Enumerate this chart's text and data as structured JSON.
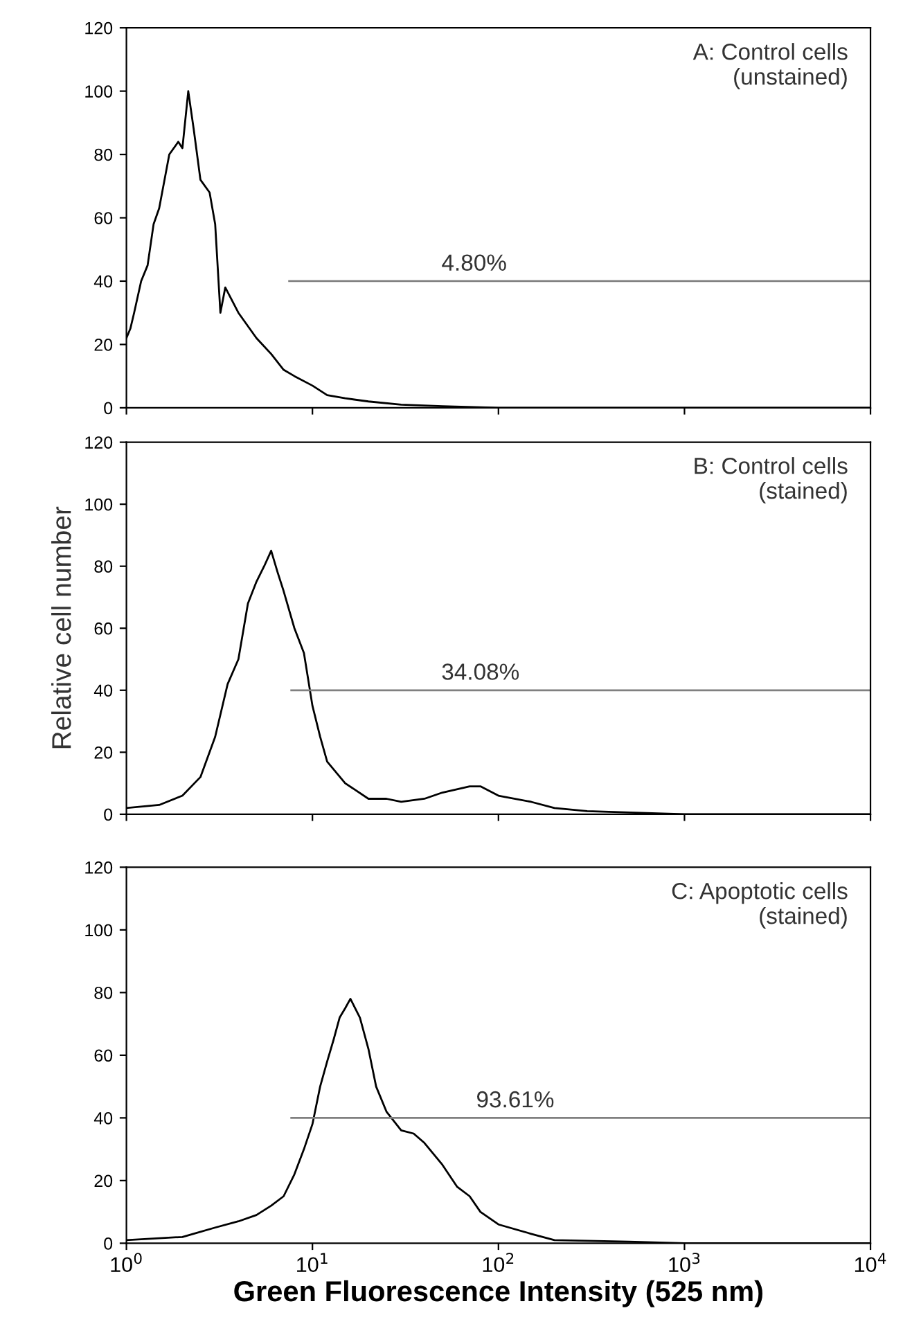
{
  "chart_data": [
    {
      "type": "line",
      "log": "x",
      "xlim": [
        1,
        10000
      ],
      "ylim": [
        0,
        120
      ],
      "yticks": [
        0,
        20,
        40,
        60,
        80,
        100,
        120
      ],
      "xticks": [
        {
          "value": 1,
          "label": null
        },
        {
          "value": 10,
          "label": null
        },
        {
          "value": 100,
          "label": null
        },
        {
          "value": 1000,
          "label": null
        },
        {
          "value": 10000,
          "label": null
        }
      ],
      "tick_labels": "y",
      "grid": false,
      "marker": "none",
      "line_style": "solid",
      "annotations": [
        "A: Control cells\n(unstained)",
        {
          "text": "4.80%",
          "x": 74,
          "y": 40
        }
      ],
      "series": [
        {
          "color": "#000000",
          "x": [
            1,
            1.05,
            1.1,
            1.2,
            1.3,
            1.4,
            1.5,
            1.7,
            1.9,
            2.0,
            2.15,
            2.3,
            2.5,
            2.8,
            3.0,
            3.2,
            3.4,
            4,
            5,
            6,
            7,
            8,
            10,
            12,
            15,
            20,
            30,
            50,
            100,
            1000,
            10000
          ],
          "values": [
            22,
            25,
            30,
            40,
            45,
            58,
            63,
            80,
            84,
            82,
            100,
            88,
            72,
            68,
            58,
            30,
            38,
            30,
            22,
            17,
            12,
            10,
            7,
            4,
            3,
            2,
            1,
            0.5,
            0,
            0,
            0
          ]
        },
        {
          "color": "#808080",
          "x": [
            7.5,
            10000
          ],
          "values": [
            40,
            40
          ]
        }
      ]
    },
    {
      "type": "line",
      "log": "x",
      "xlim": [
        1,
        10000
      ],
      "ylim": [
        0,
        120
      ],
      "yticks": [
        0,
        20,
        40,
        60,
        80,
        100,
        120
      ],
      "xticks": [
        {
          "value": 1,
          "label": null
        },
        {
          "value": 10,
          "label": null
        },
        {
          "value": 100,
          "label": null
        },
        {
          "value": 1000,
          "label": null
        },
        {
          "value": 10000,
          "label": null
        }
      ],
      "tick_labels": "y",
      "ylabel": "Relative cell number",
      "grid": false,
      "marker": "none",
      "line_style": "solid",
      "annotations": [
        "B: Control cells\n(stained)",
        {
          "text": "34.08%",
          "x": 80,
          "y": 40
        }
      ],
      "series": [
        {
          "color": "#000000",
          "x": [
            1,
            1.5,
            2,
            2.5,
            3,
            3.5,
            4,
            4.5,
            5,
            5.5,
            6,
            6.5,
            7,
            8,
            9,
            10,
            11,
            12,
            15,
            20,
            25,
            30,
            40,
            50,
            70,
            80,
            100,
            150,
            200,
            300,
            1000,
            10000
          ],
          "values": [
            2,
            3,
            6,
            12,
            25,
            42,
            50,
            68,
            75,
            80,
            85,
            78,
            72,
            60,
            52,
            35,
            25,
            17,
            10,
            5,
            5,
            4,
            5,
            7,
            9,
            9,
            6,
            4,
            2,
            1,
            0,
            0
          ]
        },
        {
          "color": "#808080",
          "x": [
            7.7,
            10000
          ],
          "values": [
            40,
            40
          ]
        }
      ]
    },
    {
      "type": "line",
      "log": "x",
      "xlim": [
        1,
        10000
      ],
      "ylim": [
        0,
        120
      ],
      "yticks": [
        0,
        20,
        40,
        60,
        80,
        100,
        120
      ],
      "xticks": [
        {
          "value": 1,
          "label": "10$^{0}$"
        },
        {
          "value": 10,
          "label": "10$^{1}$"
        },
        {
          "value": 100,
          "label": "10$^{2}$"
        },
        {
          "value": 1000,
          "label": "10$^{3}$"
        },
        {
          "value": 10000,
          "label": "10$^{4}$"
        }
      ],
      "xlabel": "Green Fluorescence Intensity (525 nm)",
      "grid": false,
      "marker": "none",
      "line_style": "solid",
      "annotations": [
        "C: Apoptotic cells\n(stained)",
        {
          "text": "93.61%",
          "x": 123,
          "y": 40
        }
      ],
      "series": [
        {
          "color": "#000000",
          "x": [
            1,
            2,
            3,
            4,
            5,
            6,
            7,
            8,
            9,
            10,
            11,
            12,
            13,
            14,
            15,
            16,
            18,
            20,
            22,
            25,
            30,
            35,
            40,
            50,
            60,
            70,
            80,
            100,
            150,
            200,
            500,
            1000,
            10000
          ],
          "values": [
            1,
            2,
            5,
            7,
            9,
            12,
            15,
            22,
            30,
            38,
            50,
            58,
            65,
            72,
            75,
            78,
            72,
            62,
            50,
            42,
            36,
            35,
            32,
            25,
            18,
            15,
            10,
            6,
            3,
            1,
            0.5,
            0,
            0
          ]
        },
        {
          "color": "#808080",
          "x": [
            7.7,
            10000
          ],
          "values": [
            40,
            40
          ]
        }
      ]
    }
  ]
}
